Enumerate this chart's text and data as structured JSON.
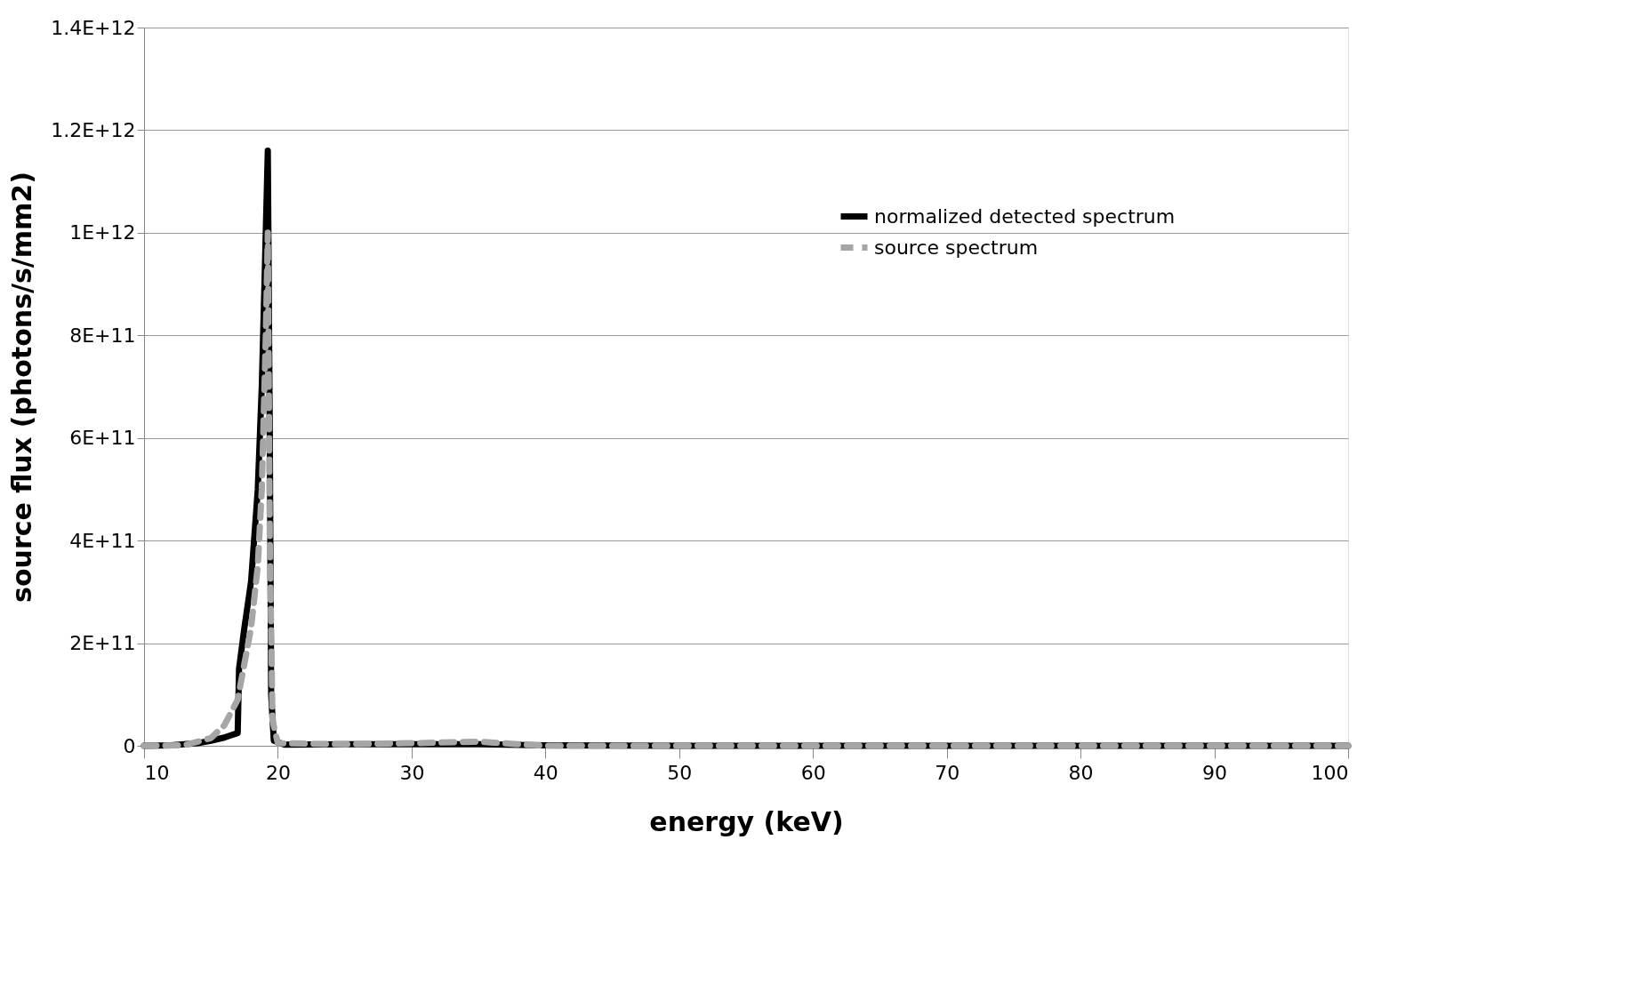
{
  "chart_data": {
    "type": "line",
    "xlabel": "energy (keV)",
    "ylabel": "source flux (photons/s/mm2)",
    "xlim": [
      10,
      100
    ],
    "xticks": [
      10,
      20,
      30,
      40,
      50,
      60,
      70,
      80,
      90,
      100
    ],
    "ylim": [
      0,
      1400000000000.0
    ],
    "yticks": [
      0,
      {
        "value": 200000000000.0,
        "label": "2E+11"
      },
      {
        "value": 400000000000.0,
        "label": "4E+11"
      },
      {
        "value": 600000000000.0,
        "label": "6E+11"
      },
      {
        "value": 800000000000.0,
        "label": "8E+11"
      },
      {
        "value": 1000000000000.0,
        "label": "1E+12"
      },
      {
        "value": 1200000000000.0,
        "label": "1.2E+12"
      },
      {
        "value": 1400000000000.0,
        "label": "1.4E+12"
      }
    ],
    "grid": "y",
    "legend": "top right",
    "marker": "none",
    "series": [
      {
        "name": "normalized detected spectrum",
        "color": "#000000",
        "line_style": "solid",
        "x": [
          10,
          12,
          14,
          15,
          16,
          17,
          17.1,
          17.5,
          18,
          18.5,
          18.8,
          19.0,
          19.25,
          19.4,
          19.5,
          19.7,
          20.5,
          25,
          30,
          35,
          40,
          50,
          60,
          70,
          80,
          90,
          100
        ],
        "values": [
          0,
          1000000000.0,
          5000000000.0,
          10000000000.0,
          16000000000.0,
          25000000000.0,
          150000000000.0,
          230000000000.0,
          320000000000.0,
          500000000000.0,
          700000000000.0,
          900000000000.0,
          1160000000000.0,
          600000000000.0,
          100000000000.0,
          10000000000.0,
          2000000000.0,
          3000000000.0,
          3000000000.0,
          3000000000.0,
          1000000000.0,
          0,
          0,
          0,
          0,
          0,
          0
        ]
      },
      {
        "name": "source spectrum",
        "color": "#a6a6a6",
        "line_style": "dashed",
        "x": [
          10,
          13,
          15,
          16,
          17,
          17.5,
          18,
          18.5,
          18.8,
          19.1,
          19.25,
          19.4,
          19.6,
          20,
          25,
          30,
          35,
          38,
          40,
          50,
          60,
          70,
          80,
          90,
          100
        ],
        "values": [
          0,
          1000000000.0,
          15000000000.0,
          40000000000.0,
          90000000000.0,
          160000000000.0,
          230000000000.0,
          350000000000.0,
          500000000000.0,
          800000000000.0,
          1000000000000.0,
          400000000000.0,
          50000000000.0,
          5000000000.0,
          3000000000.0,
          5000000000.0,
          8000000000.0,
          3000000000.0,
          0,
          0,
          0,
          0,
          0,
          0,
          0
        ]
      }
    ]
  }
}
